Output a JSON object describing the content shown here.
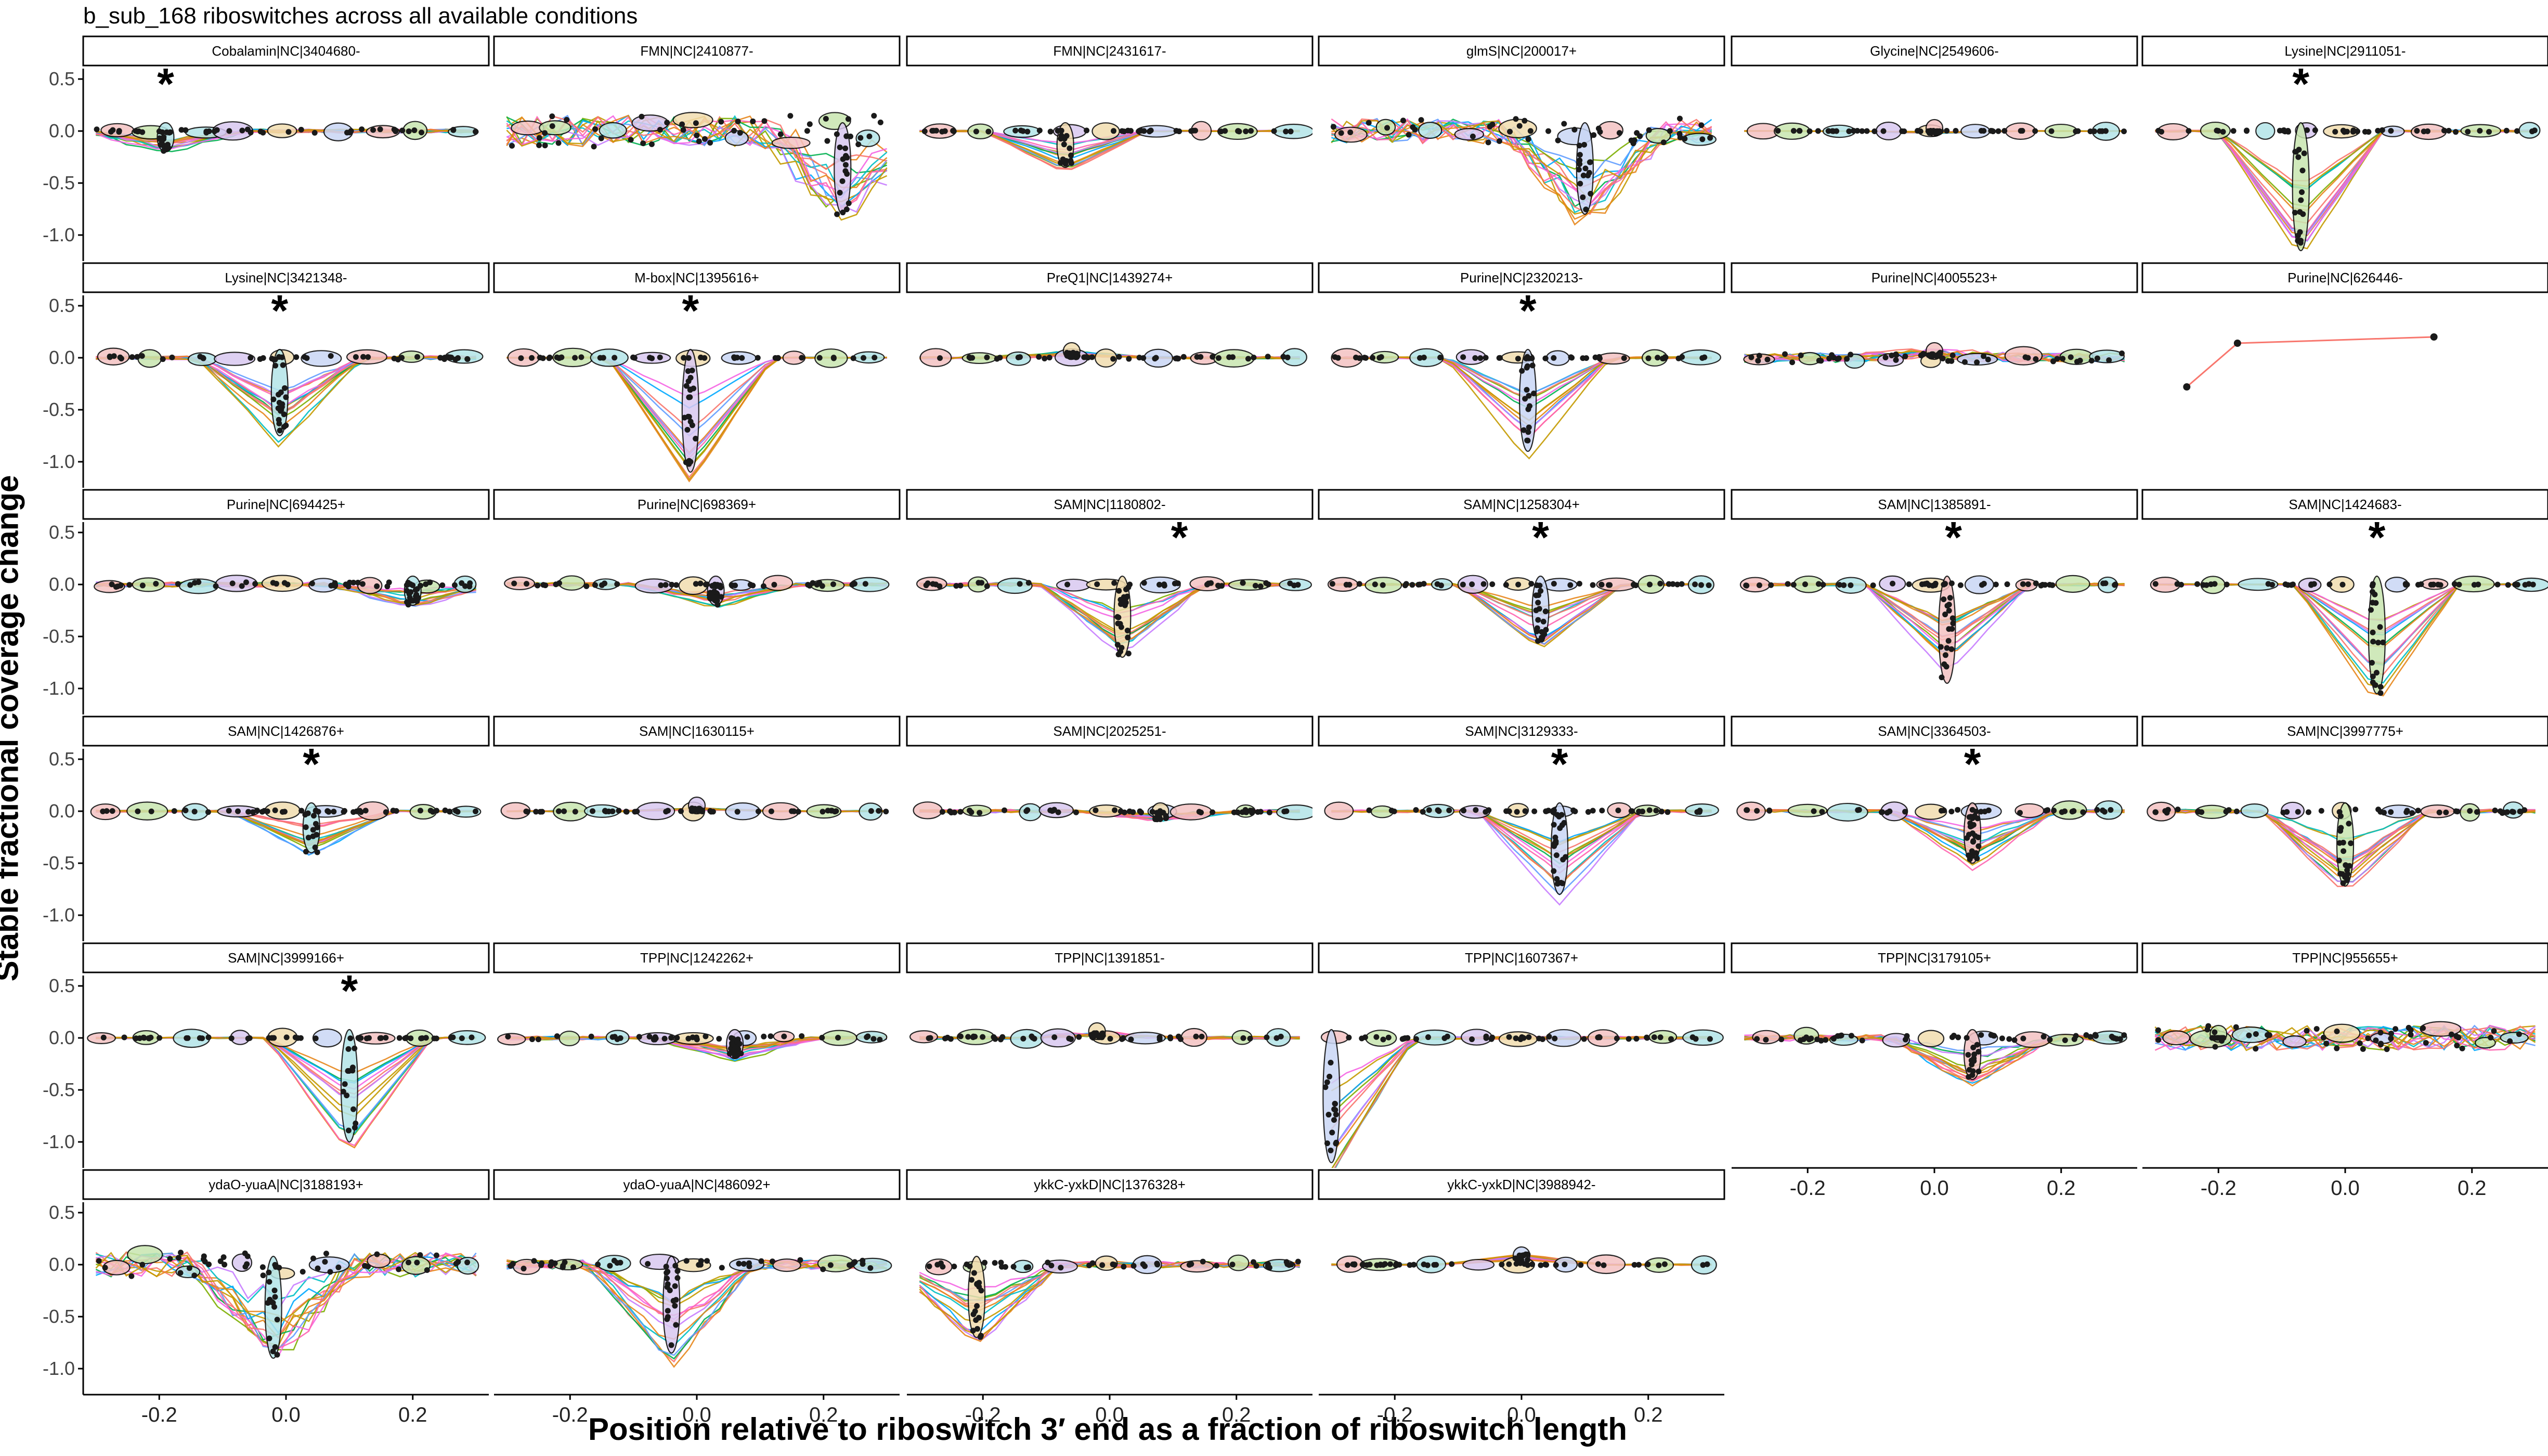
{
  "title": "b_sub_168 riboswitches across all available conditions",
  "ylabel": "Stable fractional coverage change",
  "xlabel": "Position relative to riboswitch 3′ end as a fraction of riboswitch length",
  "colors": {
    "strip_fill": "#ffffff",
    "strip_border": "#000000",
    "axis": "#000000",
    "point": "#1a1a1a",
    "line_palette": [
      "#f8766d",
      "#e7861b",
      "#c49a00",
      "#7cae00",
      "#00b050",
      "#00bfc4",
      "#00a9ff",
      "#619cff",
      "#c77cff",
      "#f564e3",
      "#ff64b0"
    ],
    "ellipse_palette": [
      "#f4c2c2",
      "#c8e6b0",
      "#b3e5e8",
      "#d9c8f0",
      "#f2ddb0",
      "#c9d7f5"
    ]
  },
  "chart_data": {
    "type": "line",
    "layout": "facet grid 6 columns x 6 rows",
    "xlim": [
      -0.32,
      0.32
    ],
    "ylim": [
      -1.25,
      0.6
    ],
    "x_ticks": [
      -0.2,
      0.0,
      0.2
    ],
    "x_tick_labels": [
      "-0.2",
      "0.0",
      "0.2"
    ],
    "y_ticks": [
      0.5,
      0.0,
      -0.5,
      -1.0
    ],
    "y_tick_labels": [
      "0.5",
      "0.0",
      "-0.5",
      "-1.0"
    ],
    "significance_marker": "*",
    "note": "Each panel: per-condition coverage-change profiles (colored lines) with point clusters (ellipses) along position; values approximate.",
    "panels": [
      {
        "label": "Cobalamin|NC|3404680-",
        "star": true,
        "star_x": -0.19,
        "dip_x": -0.19,
        "dip_y": -0.2,
        "spread": 0.06
      },
      {
        "label": "FMN|NC|2410877-",
        "star": false,
        "star_x": null,
        "dip_x": 0.23,
        "dip_y": -0.8,
        "spread": 0.5
      },
      {
        "label": "FMN|NC|2431617-",
        "star": false,
        "star_x": null,
        "dip_x": -0.07,
        "dip_y": -0.35,
        "spread": 0.02
      },
      {
        "label": "glmS|NC|200017+",
        "star": false,
        "star_x": null,
        "dip_x": 0.1,
        "dip_y": -0.8,
        "spread": 0.4
      },
      {
        "label": "Glycine|NC|2549606-",
        "star": false,
        "star_x": null,
        "dip_x": 0.0,
        "dip_y": -0.02,
        "spread": 0.01
      },
      {
        "label": "Lysine|NC|2911051-",
        "star": true,
        "star_x": -0.07,
        "dip_x": -0.07,
        "dip_y": -1.15,
        "spread": 0.03
      },
      {
        "label": "Lysine|NC|3421348-",
        "star": true,
        "star_x": -0.01,
        "dip_x": -0.01,
        "dip_y": -0.75,
        "spread": 0.06
      },
      {
        "label": "M-box|NC|1395616+",
        "star": true,
        "star_x": -0.01,
        "dip_x": -0.01,
        "dip_y": -1.1,
        "spread": 0.02
      },
      {
        "label": "PreQ1|NC|1439274+",
        "star": false,
        "star_x": null,
        "dip_x": -0.06,
        "dip_y": 0.05,
        "spread": 0.04
      },
      {
        "label": "Purine|NC|2320213-",
        "star": true,
        "star_x": 0.01,
        "dip_x": 0.01,
        "dip_y": -0.9,
        "spread": 0.03
      },
      {
        "label": "Purine|NC|4005523+",
        "star": false,
        "star_x": null,
        "dip_x": 0.0,
        "dip_y": 0.05,
        "spread": 0.15
      },
      {
        "label": "Purine|NC|626446-",
        "star": false,
        "star_x": null,
        "dip_x": null,
        "dip_y": null,
        "spread": 0.0,
        "points": [
          [
            -0.25,
            -0.28
          ],
          [
            -0.17,
            0.14
          ],
          [
            0.14,
            0.2
          ]
        ]
      },
      {
        "label": "Purine|NC|694425+",
        "star": false,
        "star_x": null,
        "dip_x": 0.2,
        "dip_y": -0.2,
        "spread": 0.08
      },
      {
        "label": "Purine|NC|698369+",
        "star": false,
        "star_x": null,
        "dip_x": 0.03,
        "dip_y": -0.2,
        "spread": 0.06
      },
      {
        "label": "SAM|NC|1180802-",
        "star": true,
        "star_x": 0.11,
        "dip_x": 0.02,
        "dip_y": -0.7,
        "spread": 0.06
      },
      {
        "label": "SAM|NC|1258304+",
        "star": true,
        "star_x": 0.03,
        "dip_x": 0.03,
        "dip_y": -0.55,
        "spread": 0.03
      },
      {
        "label": "SAM|NC|1385891-",
        "star": true,
        "star_x": 0.03,
        "dip_x": 0.02,
        "dip_y": -0.95,
        "spread": 0.04
      },
      {
        "label": "SAM|NC|1424683-",
        "star": true,
        "star_x": 0.05,
        "dip_x": 0.05,
        "dip_y": -1.05,
        "spread": 0.02
      },
      {
        "label": "SAM|NC|1426876+",
        "star": true,
        "star_x": 0.04,
        "dip_x": 0.04,
        "dip_y": -0.4,
        "spread": 0.03
      },
      {
        "label": "SAM|NC|1630115+",
        "star": false,
        "star_x": null,
        "dip_x": 0.0,
        "dip_y": 0.03,
        "spread": 0.02
      },
      {
        "label": "SAM|NC|2025251-",
        "star": false,
        "star_x": null,
        "dip_x": 0.08,
        "dip_y": -0.08,
        "spread": 0.05
      },
      {
        "label": "SAM|NC|3129333-",
        "star": true,
        "star_x": 0.06,
        "dip_x": 0.06,
        "dip_y": -0.8,
        "spread": 0.04
      },
      {
        "label": "SAM|NC|3364503-",
        "star": true,
        "star_x": 0.06,
        "dip_x": 0.06,
        "dip_y": -0.5,
        "spread": 0.05
      },
      {
        "label": "SAM|NC|3997775+",
        "star": false,
        "star_x": null,
        "dip_x": 0.0,
        "dip_y": -0.72,
        "spread": 0.06
      },
      {
        "label": "SAM|NC|3999166+",
        "star": true,
        "star_x": 0.1,
        "dip_x": 0.1,
        "dip_y": -1.0,
        "spread": 0.02
      },
      {
        "label": "TPP|NC|1242262+",
        "star": false,
        "star_x": null,
        "dip_x": 0.06,
        "dip_y": -0.2,
        "spread": 0.06
      },
      {
        "label": "TPP|NC|1391851-",
        "star": false,
        "star_x": null,
        "dip_x": -0.02,
        "dip_y": 0.05,
        "spread": 0.05
      },
      {
        "label": "TPP|NC|1607367+",
        "star": false,
        "star_x": null,
        "dip_x": -0.3,
        "dip_y": -1.2,
        "spread": 0.05
      },
      {
        "label": "TPP|NC|3179105+",
        "star": false,
        "star_x": null,
        "dip_x": 0.06,
        "dip_y": -0.4,
        "spread": 0.1
      },
      {
        "label": "TPP|NC|955655+",
        "star": false,
        "star_x": null,
        "dip_x": -0.2,
        "dip_y": 0.0,
        "spread": 0.4
      },
      {
        "label": "ydaO-yuaA|NC|3188193+",
        "star": false,
        "star_x": null,
        "dip_x": -0.02,
        "dip_y": -0.9,
        "spread": 0.4
      },
      {
        "label": "ydaO-yuaA|NC|486092+",
        "star": false,
        "star_x": null,
        "dip_x": -0.04,
        "dip_y": -0.85,
        "spread": 0.15
      },
      {
        "label": "ykkC-yxkD|NC|1376328+",
        "star": false,
        "star_x": null,
        "dip_x": -0.21,
        "dip_y": -0.7,
        "spread": 0.1
      },
      {
        "label": "ykkC-yxkD|NC|3988942-",
        "star": false,
        "star_x": null,
        "dip_x": 0.0,
        "dip_y": 0.1,
        "spread": 0.02
      }
    ]
  }
}
